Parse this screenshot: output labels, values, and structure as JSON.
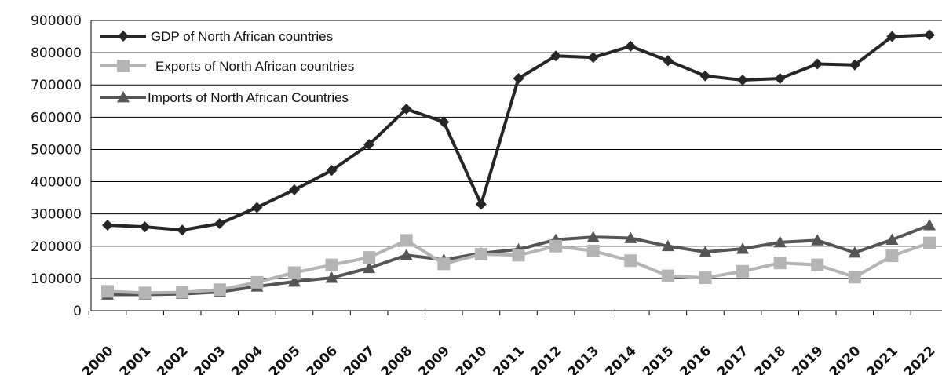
{
  "chart_data": {
    "type": "line",
    "x": [
      "2000",
      "2001",
      "2002",
      "2003",
      "2004",
      "2005",
      "2006",
      "2007",
      "2008",
      "2009",
      "2010",
      "2011",
      "2012",
      "2013",
      "2014",
      "2015",
      "2016",
      "2017",
      "2018",
      "2019",
      "2020",
      "2021",
      "2022"
    ],
    "ylim": [
      0,
      900000
    ],
    "yticks": [
      0,
      100000,
      200000,
      300000,
      400000,
      500000,
      600000,
      700000,
      800000,
      900000
    ],
    "ytick_labels": [
      "0",
      "100000",
      "200000",
      "300000",
      "400000",
      "500000",
      "600000",
      "700000",
      "800000",
      "900000"
    ],
    "grid": true,
    "legend_position": "top-left",
    "series": [
      {
        "name": "GDP of North African countries",
        "marker": "diamond",
        "color": "#262626",
        "values": [
          265000,
          260000,
          250000,
          270000,
          320000,
          375000,
          435000,
          515000,
          625000,
          585000,
          330000,
          720000,
          790000,
          785000,
          820000,
          775000,
          728000,
          715000,
          720000,
          765000,
          762000,
          850000,
          855000
        ]
      },
      {
        "name": "Exports of North African countries",
        "marker": "square",
        "color": "#b4b4b4",
        "values": [
          60000,
          55000,
          57000,
          65000,
          88000,
          118000,
          142000,
          165000,
          218000,
          145000,
          175000,
          172000,
          200000,
          185000,
          155000,
          108000,
          102000,
          122000,
          148000,
          142000,
          104000,
          170000,
          210000
        ]
      },
      {
        "name": "Imports of North African Countries",
        "marker": "triangle",
        "color": "#555555",
        "values": [
          50000,
          50000,
          52000,
          58000,
          75000,
          90000,
          102000,
          132000,
          172000,
          158000,
          178000,
          190000,
          220000,
          228000,
          225000,
          200000,
          182000,
          192000,
          212000,
          218000,
          180000,
          220000,
          265000
        ]
      }
    ]
  }
}
